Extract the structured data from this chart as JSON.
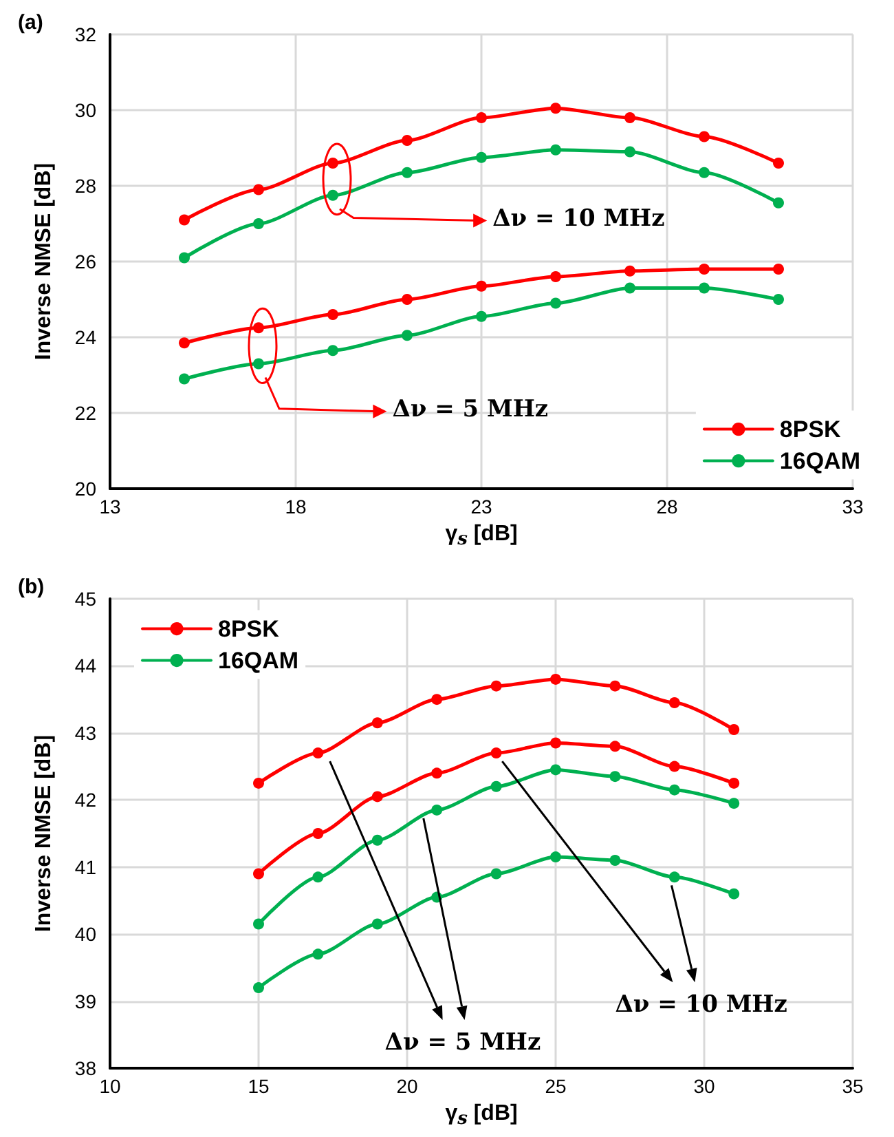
{
  "chart_data": [
    {
      "type": "line",
      "title": "(a)",
      "xlabel": "γ$_{s}$ [dB]",
      "ylabel": "Inverse NMSE [dB]",
      "x": [
        15,
        17,
        19,
        21,
        23,
        25,
        27,
        29,
        31
      ],
      "series": [
        {
          "name": "8PSK",
          "color": "#ff0000",
          "values": [
            27.1,
            27.9,
            28.6,
            29.2,
            29.8,
            30.05,
            29.8,
            29.3,
            28.6
          ]
        },
        {
          "name": "16QAM",
          "color": "#00b050",
          "values": [
            26.1,
            27.0,
            27.75,
            28.35,
            28.75,
            28.95,
            28.9,
            28.35,
            27.55
          ]
        },
        {
          "color": "#ff0000",
          "values": [
            23.85,
            24.25,
            24.6,
            25.0,
            25.35,
            25.6,
            25.75,
            25.8,
            25.8
          ]
        },
        {
          "color": "#00b050",
          "values": [
            22.9,
            23.3,
            23.65,
            24.05,
            24.55,
            24.9,
            25.3,
            25.3,
            25.0
          ]
        }
      ],
      "xlim": [
        13,
        33
      ],
      "xticks": [
        13,
        18,
        23,
        28,
        33
      ],
      "ylim": [
        20,
        32
      ],
      "yticks": [
        20,
        22,
        24,
        26,
        28,
        30,
        32
      ],
      "annotations": [
        "Δν = 10 MHz",
        "Δν = 5 MHz"
      ],
      "grid": true,
      "legend": "bottom right",
      "marker": "circle",
      "line_style": "solid"
    },
    {
      "type": "line",
      "title": "(b)",
      "xlabel": "γ$_{s}$ [dB]",
      "ylabel": "Inverse NMSE [dB]",
      "x": [
        15,
        17,
        19,
        21,
        23,
        25,
        27,
        29,
        31
      ],
      "series": [
        {
          "name": "8PSK",
          "color": "#ff0000",
          "values": [
            42.25,
            42.7,
            43.15,
            43.5,
            43.7,
            43.8,
            43.7,
            43.45,
            43.05
          ]
        },
        {
          "color": "#ff0000",
          "values": [
            40.9,
            41.5,
            42.05,
            42.4,
            42.7,
            42.85,
            42.8,
            42.5,
            42.25
          ]
        },
        {
          "name": "16QAM",
          "color": "#00b050",
          "values": [
            40.15,
            40.85,
            41.4,
            41.85,
            42.2,
            42.45,
            42.35,
            42.15,
            41.95
          ]
        },
        {
          "color": "#00b050",
          "values": [
            39.2,
            39.7,
            40.15,
            40.55,
            40.9,
            41.15,
            41.1,
            40.85,
            40.6
          ]
        }
      ],
      "xlim": [
        10,
        35
      ],
      "xticks": [
        10,
        15,
        20,
        25,
        30,
        35
      ],
      "ylim": [
        38,
        45
      ],
      "yticks": [
        38,
        39,
        40,
        41,
        42,
        43,
        44,
        45
      ],
      "annotations": [
        "Δν = 5 MHz",
        "Δν = 10 MHz"
      ],
      "grid": true,
      "legend": "top left",
      "marker": "circle",
      "line_style": "solid"
    }
  ]
}
